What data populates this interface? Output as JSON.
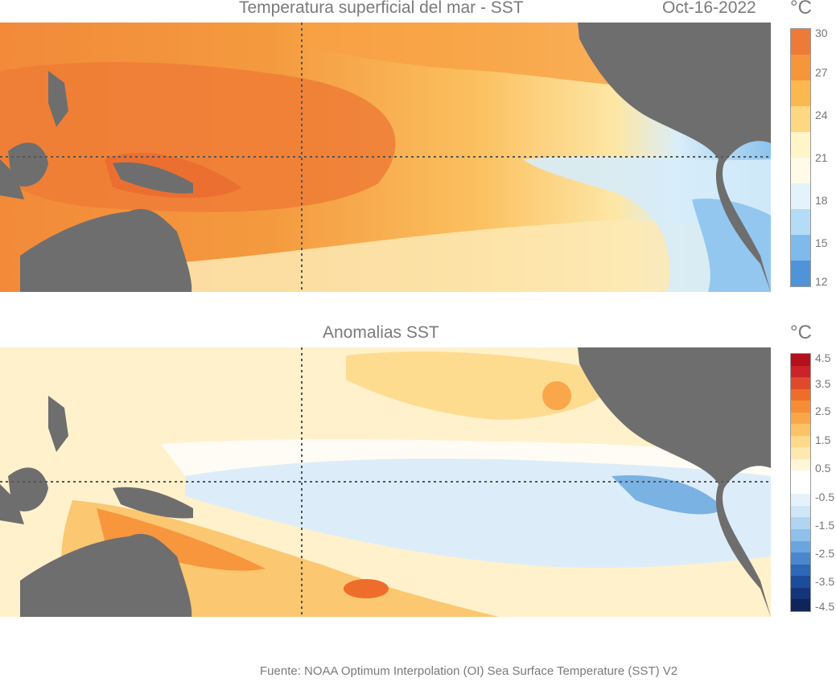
{
  "top_panel": {
    "title": "Temperatura superficial del mar - SST",
    "date": "Oct-16-2022",
    "unit": "°C",
    "colorbar_ticks": [
      "30",
      "27",
      "24",
      "21",
      "18",
      "15",
      "12"
    ],
    "colorbar_colors": [
      "#ee7a38",
      "#f6953a",
      "#fbb84e",
      "#fdd782",
      "#fff5c8",
      "#fffbe8",
      "#e4f3fb",
      "#b4dcf6",
      "#7ebbec",
      "#4f93d8"
    ]
  },
  "bottom_panel": {
    "title": "Anomalias SST",
    "unit": "°C",
    "colorbar_ticks": [
      "4.5",
      "3.5",
      "2.5",
      "1.5",
      "0.5",
      "-0.5",
      "-1.5",
      "-2.5",
      "-3.5",
      "-4.5"
    ],
    "colorbar_colors": [
      "#b3101c",
      "#cc2229",
      "#e04a2a",
      "#ee6d2a",
      "#f68d34",
      "#f9a74a",
      "#fbc266",
      "#fdd98a",
      "#fee8b0",
      "#fff5d9",
      "#ffffff",
      "#ffffff",
      "#e6f2fb",
      "#cfe6f7",
      "#b0d5f1",
      "#8ec0ea",
      "#6aa5df",
      "#4a87cf",
      "#2f68b8",
      "#1d4c9a",
      "#15357a",
      "#0f2458"
    ]
  },
  "footer": {
    "source": "Fuente: NOAA Optimum Interpolation (OI) Sea Surface Temperature (SST) V2"
  },
  "colors": {
    "land": "#6e6e6e",
    "grid": "#555555"
  }
}
